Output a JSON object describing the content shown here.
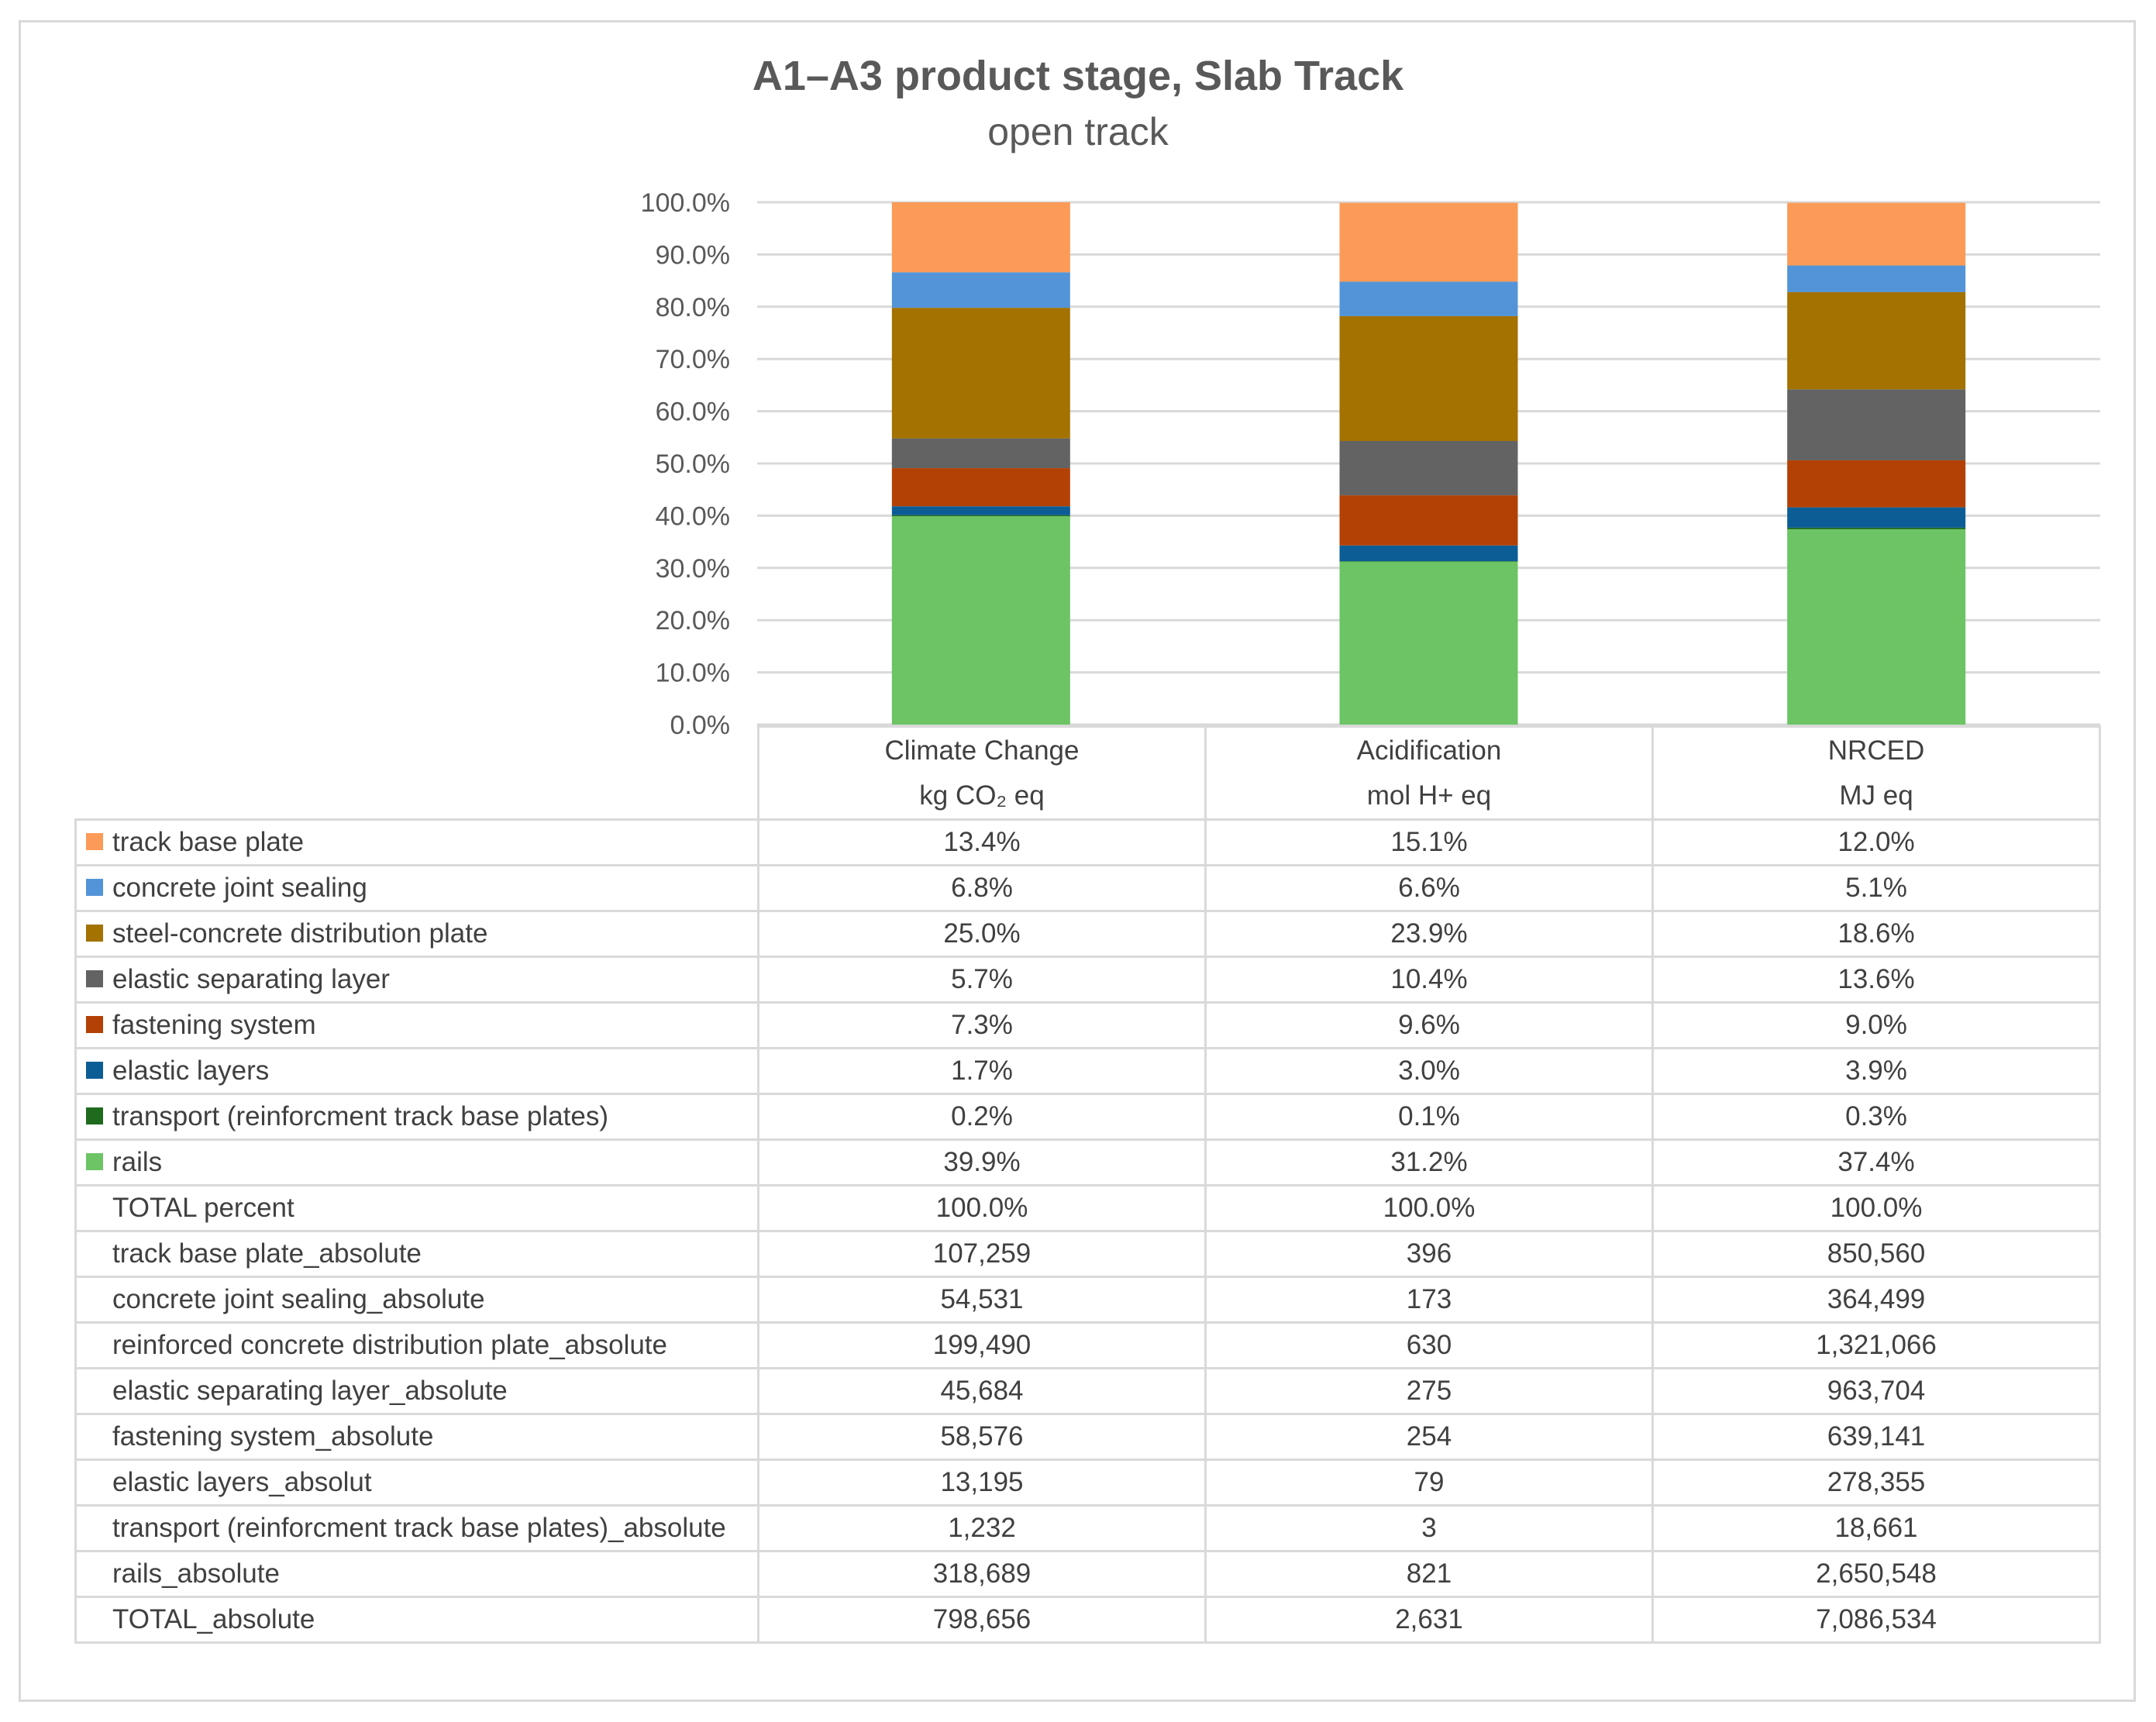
{
  "chart_data": {
    "type": "bar",
    "stacked": true,
    "title": "A1–A3 product stage, Slab Track",
    "subtitle": "open track",
    "categories": [
      "Climate Change",
      "Acidification",
      "NRCED"
    ],
    "units": [
      "kg CO₂ eq",
      "mol H+ eq",
      "MJ eq"
    ],
    "ylim": [
      0,
      100
    ],
    "yticks": [
      "0.0%",
      "10.0%",
      "20.0%",
      "30.0%",
      "40.0%",
      "50.0%",
      "60.0%",
      "70.0%",
      "80.0%",
      "90.0%",
      "100.0%"
    ],
    "grid": true,
    "series": [
      {
        "name": "rails",
        "color": "#6cc464",
        "values": [
          39.9,
          31.2,
          37.4
        ],
        "labels": [
          "39.9%",
          "31.2%",
          "37.4%"
        ]
      },
      {
        "name": "transport (reinforcment track base plates)",
        "color": "#1e6b1e",
        "values": [
          0.2,
          0.1,
          0.3
        ],
        "labels": [
          "0.2%",
          "0.1%",
          "0.3%"
        ]
      },
      {
        "name": "elastic layers",
        "color": "#0c5d96",
        "values": [
          1.7,
          3.0,
          3.9
        ],
        "labels": [
          "1.7%",
          "3.0%",
          "3.9%"
        ]
      },
      {
        "name": "fastening system",
        "color": "#b34105",
        "values": [
          7.3,
          9.6,
          9.0
        ],
        "labels": [
          "7.3%",
          "9.6%",
          "9.0%"
        ]
      },
      {
        "name": "elastic separating layer",
        "color": "#636363",
        "values": [
          5.7,
          10.4,
          13.6
        ],
        "labels": [
          "5.7%",
          "10.4%",
          "13.6%"
        ]
      },
      {
        "name": "steel-concrete distribution plate",
        "color": "#a37200",
        "values": [
          25.0,
          23.9,
          18.6
        ],
        "labels": [
          "25.0%",
          "23.9%",
          "18.6%"
        ]
      },
      {
        "name": "concrete joint sealing",
        "color": "#5394d8",
        "values": [
          6.8,
          6.6,
          5.1
        ],
        "labels": [
          "6.8%",
          "6.6%",
          "5.1%"
        ]
      },
      {
        "name": "track base plate",
        "color": "#fc9a58",
        "values": [
          13.4,
          15.1,
          12.0
        ],
        "labels": [
          "13.4%",
          "15.1%",
          "12.0%"
        ]
      }
    ],
    "table_rows": [
      {
        "label": "track base plate",
        "color": "#fc9a58",
        "values": [
          "13.4%",
          "15.1%",
          "12.0%"
        ]
      },
      {
        "label": "concrete joint sealing",
        "color": "#5394d8",
        "values": [
          "6.8%",
          "6.6%",
          "5.1%"
        ]
      },
      {
        "label": "steel-concrete distribution plate",
        "color": "#a37200",
        "values": [
          "25.0%",
          "23.9%",
          "18.6%"
        ]
      },
      {
        "label": "elastic separating layer",
        "color": "#636363",
        "values": [
          "5.7%",
          "10.4%",
          "13.6%"
        ]
      },
      {
        "label": "fastening system",
        "color": "#b34105",
        "values": [
          "7.3%",
          "9.6%",
          "9.0%"
        ]
      },
      {
        "label": "elastic layers",
        "color": "#0c5d96",
        "values": [
          "1.7%",
          "3.0%",
          "3.9%"
        ]
      },
      {
        "label": "transport (reinforcment track base plates)",
        "color": "#1e6b1e",
        "values": [
          "0.2%",
          "0.1%",
          "0.3%"
        ]
      },
      {
        "label": "rails",
        "color": "#6cc464",
        "values": [
          "39.9%",
          "31.2%",
          "37.4%"
        ]
      },
      {
        "label": "TOTAL percent",
        "color": null,
        "values": [
          "100.0%",
          "100.0%",
          "100.0%"
        ]
      },
      {
        "label": "track base plate_absolute",
        "color": null,
        "values": [
          "107,259",
          "396",
          "850,560"
        ]
      },
      {
        "label": "concrete joint sealing_absolute",
        "color": null,
        "values": [
          "54,531",
          "173",
          "364,499"
        ]
      },
      {
        "label": "reinforced concrete distribution plate_absolute",
        "color": null,
        "values": [
          "199,490",
          "630",
          "1,321,066"
        ]
      },
      {
        "label": "elastic separating layer_absolute",
        "color": null,
        "values": [
          "45,684",
          "275",
          "963,704"
        ]
      },
      {
        "label": "fastening system_absolute",
        "color": null,
        "values": [
          "58,576",
          "254",
          "639,141"
        ]
      },
      {
        "label": "elastic layers_absolut",
        "color": null,
        "values": [
          "13,195",
          "79",
          "278,355"
        ]
      },
      {
        "label": "transport (reinforcment track base plates)_absolute",
        "color": null,
        "values": [
          "1,232",
          "3",
          "18,661"
        ]
      },
      {
        "label": "rails_absolute",
        "color": null,
        "values": [
          "318,689",
          "821",
          "2,650,548"
        ]
      },
      {
        "label": "TOTAL_absolute",
        "color": null,
        "values": [
          "798,656",
          "2,631",
          "7,086,534"
        ]
      }
    ]
  }
}
